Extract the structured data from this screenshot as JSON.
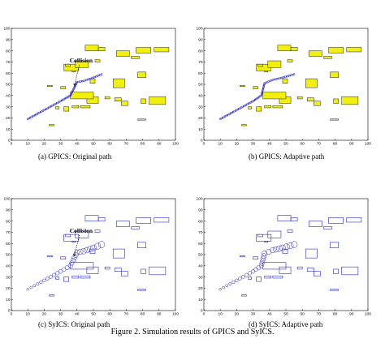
{
  "figure_caption": "Figure 2.     Simulation results of GPICS and SyICS.",
  "annotation_label": "Collision",
  "colors": {
    "obstacle_fill_yellow": "#f0ef10",
    "obstacle_stroke": "#222222",
    "obstacle_blue": "#2727d6",
    "path_blue": "#2222cc"
  },
  "panels": [
    {
      "id": "a",
      "caption": "(a) GPICS: Original path",
      "style": "filled",
      "path": "original",
      "marker": "small",
      "collision": true
    },
    {
      "id": "b",
      "caption": "(b) GPICS: Adaptive path",
      "style": "filled",
      "path": "adaptive",
      "marker": "small",
      "collision": false
    },
    {
      "id": "c",
      "caption": "(c) SyICS: Original path",
      "style": "outline",
      "path": "original",
      "marker": "circle",
      "collision": true
    },
    {
      "id": "d",
      "caption": "(d) SyICS: Adaptive path",
      "style": "outline",
      "path": "adaptive",
      "marker": "circle",
      "collision": false
    }
  ],
  "axis": {
    "x_ticks": [
      0,
      10,
      20,
      30,
      40,
      50,
      60,
      70,
      80,
      90,
      100
    ],
    "y_ticks": [
      0,
      10,
      20,
      30,
      40,
      50,
      60,
      70,
      80,
      90,
      100
    ],
    "x_tick_labels_last_panel_d": "100"
  },
  "chart_data": [
    {
      "type": "scatter",
      "title": "",
      "xlim": [
        0,
        100
      ],
      "ylim": [
        0,
        100
      ],
      "obstacles": [
        [
          32,
          62,
          9,
          6
        ],
        [
          39,
          65,
          8,
          6
        ],
        [
          33,
          66,
          3,
          2
        ],
        [
          45,
          80,
          8,
          5
        ],
        [
          53,
          80,
          4,
          3
        ],
        [
          51,
          70,
          3,
          2
        ],
        [
          64,
          75,
          8,
          5
        ],
        [
          76,
          78,
          9,
          5
        ],
        [
          87,
          79,
          9,
          4
        ],
        [
          73,
          73,
          5,
          2
        ],
        [
          77,
          56,
          5,
          5
        ],
        [
          62,
          47,
          7,
          8
        ],
        [
          48,
          51,
          3,
          4
        ],
        [
          46,
          33,
          7,
          6
        ],
        [
          36,
          37,
          14,
          6
        ],
        [
          37,
          29,
          4,
          2
        ],
        [
          42,
          29,
          6,
          2
        ],
        [
          63,
          35,
          4,
          3
        ],
        [
          67,
          31,
          4,
          4
        ],
        [
          79,
          33,
          3,
          4
        ],
        [
          84,
          32,
          10,
          7
        ],
        [
          32,
          26,
          3,
          4
        ],
        [
          27,
          28,
          2,
          2
        ],
        [
          22,
          48,
          3,
          1
        ],
        [
          30,
          46,
          3,
          2
        ],
        [
          37,
          61,
          2,
          1
        ],
        [
          77,
          18,
          5,
          1
        ],
        [
          23,
          13,
          3,
          1
        ],
        [
          57,
          37,
          3,
          2
        ]
      ],
      "path_original": [
        [
          10,
          19
        ],
        [
          20,
          27
        ],
        [
          30,
          35
        ],
        [
          36,
          40
        ],
        [
          40,
          52
        ],
        [
          44,
          53
        ],
        [
          50,
          56
        ],
        [
          55,
          59
        ]
      ],
      "path_adaptive": [
        [
          10,
          19
        ],
        [
          20,
          27
        ],
        [
          30,
          35
        ],
        [
          35,
          40
        ],
        [
          37,
          51
        ],
        [
          42,
          54
        ],
        [
          48,
          56
        ],
        [
          55,
          59
        ]
      ],
      "collision_point": [
        38,
        48
      ]
    }
  ]
}
